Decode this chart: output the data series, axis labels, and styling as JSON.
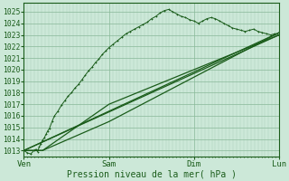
{
  "xlabel": "Pression niveau de la mer( hPa )",
  "bg_color": "#cce8d8",
  "grid_color_major": "#88b898",
  "grid_color_minor": "#aacfba",
  "line_color": "#1a5c1a",
  "ylim": [
    1012.5,
    1025.8
  ],
  "yticks": [
    1013,
    1014,
    1015,
    1016,
    1017,
    1018,
    1019,
    1020,
    1021,
    1022,
    1023,
    1024,
    1025
  ],
  "xtick_labels": [
    "Ven",
    "Sam",
    "Dim",
    "Lun"
  ],
  "xtick_positions": [
    0,
    1,
    2,
    3
  ],
  "x_total": 3.0,
  "lines": {
    "main_x": [
      0.0,
      0.04,
      0.08,
      0.12,
      0.14,
      0.16,
      0.18,
      0.2,
      0.22,
      0.24,
      0.26,
      0.28,
      0.3,
      0.33,
      0.36,
      0.4,
      0.44,
      0.48,
      0.52,
      0.56,
      0.6,
      0.64,
      0.68,
      0.72,
      0.76,
      0.8,
      0.84,
      0.88,
      0.92,
      0.96,
      1.0,
      1.05,
      1.1,
      1.15,
      1.2,
      1.25,
      1.3,
      1.35,
      1.4,
      1.45,
      1.5,
      1.55,
      1.6,
      1.65,
      1.7,
      1.75,
      1.8,
      1.85,
      1.9,
      1.95,
      2.0,
      2.05,
      2.1,
      2.15,
      2.2,
      2.25,
      2.3,
      2.35,
      2.4,
      2.45,
      2.5,
      2.55,
      2.6,
      2.65,
      2.7,
      2.75,
      2.8,
      2.85,
      2.9,
      2.95,
      3.0
    ],
    "main_y": [
      1013.0,
      1012.8,
      1012.7,
      1013.0,
      1013.1,
      1012.9,
      1013.3,
      1013.6,
      1013.9,
      1014.1,
      1014.4,
      1014.7,
      1014.9,
      1015.5,
      1016.0,
      1016.4,
      1016.9,
      1017.3,
      1017.7,
      1018.0,
      1018.4,
      1018.7,
      1019.1,
      1019.5,
      1019.9,
      1020.2,
      1020.6,
      1020.9,
      1021.3,
      1021.6,
      1021.9,
      1022.2,
      1022.5,
      1022.8,
      1023.1,
      1023.3,
      1023.5,
      1023.7,
      1023.9,
      1024.1,
      1024.4,
      1024.6,
      1024.9,
      1025.1,
      1025.2,
      1025.0,
      1024.8,
      1024.6,
      1024.5,
      1024.3,
      1024.2,
      1024.0,
      1024.2,
      1024.4,
      1024.5,
      1024.4,
      1024.2,
      1024.0,
      1023.8,
      1023.6,
      1023.5,
      1023.4,
      1023.3,
      1023.4,
      1023.5,
      1023.3,
      1023.2,
      1023.1,
      1023.0,
      1023.1,
      1023.0
    ],
    "env_lines": [
      {
        "x": [
          0.0,
          3.0
        ],
        "y": [
          1013.0,
          1023.0
        ]
      },
      {
        "x": [
          0.0,
          3.0
        ],
        "y": [
          1013.0,
          1023.2
        ]
      },
      {
        "x": [
          0.0,
          0.22,
          1.0,
          3.0
        ],
        "y": [
          1013.0,
          1013.0,
          1017.0,
          1023.0
        ]
      },
      {
        "x": [
          0.0,
          0.22,
          1.0,
          3.0
        ],
        "y": [
          1013.0,
          1013.0,
          1015.5,
          1023.2
        ]
      }
    ]
  }
}
